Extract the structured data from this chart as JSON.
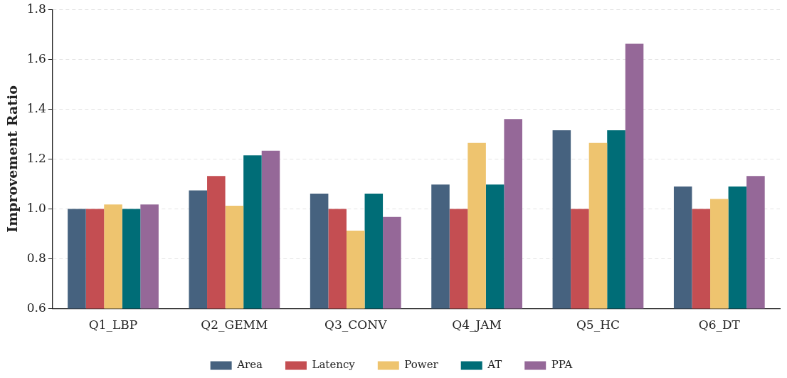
{
  "chart_data": {
    "type": "bar",
    "ylabel": "Improvement Ratio",
    "categories": [
      "Q1_LBP",
      "Q2_GEMM",
      "Q3_CONV",
      "Q4_JAM",
      "Q5_HC",
      "Q6_DT"
    ],
    "series": [
      {
        "name": "Area",
        "color": "#46627f",
        "values": [
          1.0,
          1.074,
          1.061,
          1.098,
          1.315,
          1.09
        ]
      },
      {
        "name": "Latency",
        "color": "#c44e52",
        "values": [
          1.0,
          1.132,
          1.0,
          1.0,
          1.0,
          1.0
        ]
      },
      {
        "name": "Power",
        "color": "#eec46f",
        "values": [
          1.018,
          1.013,
          0.913,
          1.265,
          1.265,
          1.04
        ]
      },
      {
        "name": "AT",
        "color": "#006d77",
        "values": [
          1.0,
          1.215,
          1.061,
          1.098,
          1.315,
          1.09
        ]
      },
      {
        "name": "PPA",
        "color": "#956898",
        "values": [
          1.018,
          1.233,
          0.968,
          1.36,
          1.662,
          1.132
        ]
      }
    ],
    "ylim": [
      0.6,
      1.8
    ],
    "yticks": [
      0.6,
      0.8,
      {
        "value": 1,
        "label": "1.0"
      },
      1.2,
      1.4,
      1.6,
      1.8
    ],
    "grid": "y",
    "legend": "bottom"
  }
}
